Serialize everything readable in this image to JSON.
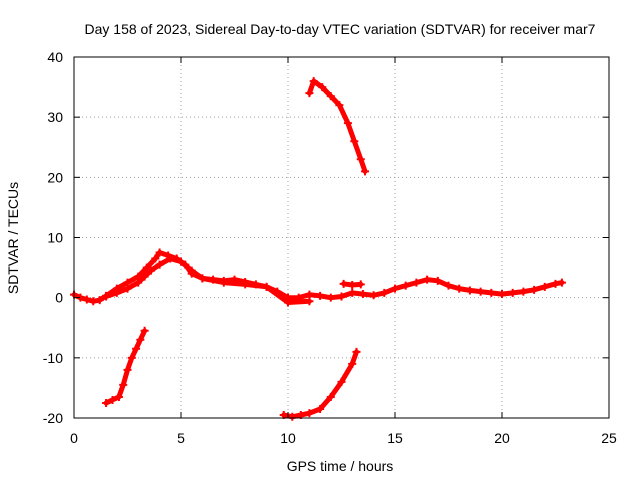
{
  "chart_data": {
    "type": "line",
    "title": "Day 158 of 2023, Sidereal Day-to-day VTEC variation (SDTVAR) for receiver mar7",
    "xlabel": "GPS time / hours",
    "ylabel": "SDTVAR / TECUs",
    "xlim": [
      0,
      25
    ],
    "ylim": [
      -20,
      40
    ],
    "xticks": [
      0,
      5,
      10,
      15,
      20,
      25
    ],
    "yticks": [
      -20,
      -10,
      0,
      10,
      20,
      30,
      40
    ],
    "grid": true,
    "legend": "none",
    "color": "#ff0000",
    "series": [
      {
        "name": "main-arc",
        "x": [
          0.0,
          0.3,
          0.6,
          0.9,
          1.2,
          1.5,
          2.0,
          2.5,
          3.0,
          3.4,
          3.8,
          4.0,
          4.4,
          4.8,
          5.2,
          5.5,
          6.0,
          6.5,
          7.0,
          7.5,
          8.0,
          8.5,
          9.0,
          9.5,
          10.0,
          10.5,
          11.0,
          11.5,
          12.0,
          12.5,
          13.0,
          13.5,
          14.0,
          14.5,
          15.0,
          15.5,
          16.0,
          16.5,
          17.0,
          17.5,
          18.0,
          18.5,
          19.0,
          19.5,
          20.0,
          20.5,
          21.0,
          21.5,
          22.0,
          22.5,
          22.8
        ],
        "y": [
          0.5,
          0.0,
          -0.3,
          -0.6,
          -0.4,
          0.3,
          1.5,
          2.5,
          3.5,
          5.0,
          6.5,
          7.5,
          7.0,
          6.5,
          5.5,
          4.0,
          3.2,
          3.0,
          2.8,
          3.0,
          2.6,
          2.2,
          1.8,
          1.0,
          0.0,
          0.0,
          0.5,
          0.3,
          0.0,
          0.2,
          0.8,
          0.6,
          0.4,
          0.8,
          1.5,
          2.0,
          2.5,
          3.0,
          2.8,
          2.0,
          1.5,
          1.2,
          1.0,
          0.8,
          0.6,
          0.8,
          1.0,
          1.3,
          1.8,
          2.3,
          2.5
        ]
      },
      {
        "name": "lower-band",
        "x": [
          1.5,
          2.0,
          2.5,
          3.0,
          3.3,
          3.6,
          4.0,
          4.5,
          5.0,
          5.5,
          6.0,
          7.0,
          8.0,
          9.0,
          10.0,
          11.0
        ],
        "y": [
          0.2,
          0.8,
          1.5,
          2.5,
          3.5,
          4.5,
          5.5,
          6.5,
          6.0,
          4.5,
          3.2,
          2.5,
          2.2,
          1.8,
          -0.8,
          -0.6
        ]
      },
      {
        "name": "arc-low-1",
        "x": [
          1.5,
          1.8,
          2.1,
          2.3,
          2.5,
          2.7,
          2.9,
          3.1,
          3.3
        ],
        "y": [
          -17.5,
          -17.0,
          -16.5,
          -14.5,
          -12.0,
          -10.0,
          -8.5,
          -7.0,
          -5.5
        ]
      },
      {
        "name": "arc-low-2",
        "x": [
          9.8,
          10.2,
          10.6,
          11.0,
          11.5,
          12.0,
          12.5,
          13.0,
          13.2
        ],
        "y": [
          -19.5,
          -19.8,
          -19.5,
          -19.2,
          -18.5,
          -16.5,
          -14.0,
          -11.0,
          -9.0
        ]
      },
      {
        "name": "arc-high",
        "x": [
          11.0,
          11.2,
          11.6,
          12.0,
          12.4,
          12.8,
          13.1,
          13.4,
          13.6
        ],
        "y": [
          34.0,
          36.0,
          35.0,
          33.5,
          32.0,
          29.0,
          26.0,
          23.0,
          21.0
        ]
      },
      {
        "name": "short-seg",
        "x": [
          12.6,
          13.0,
          13.4
        ],
        "y": [
          2.3,
          2.1,
          2.2
        ]
      }
    ]
  }
}
